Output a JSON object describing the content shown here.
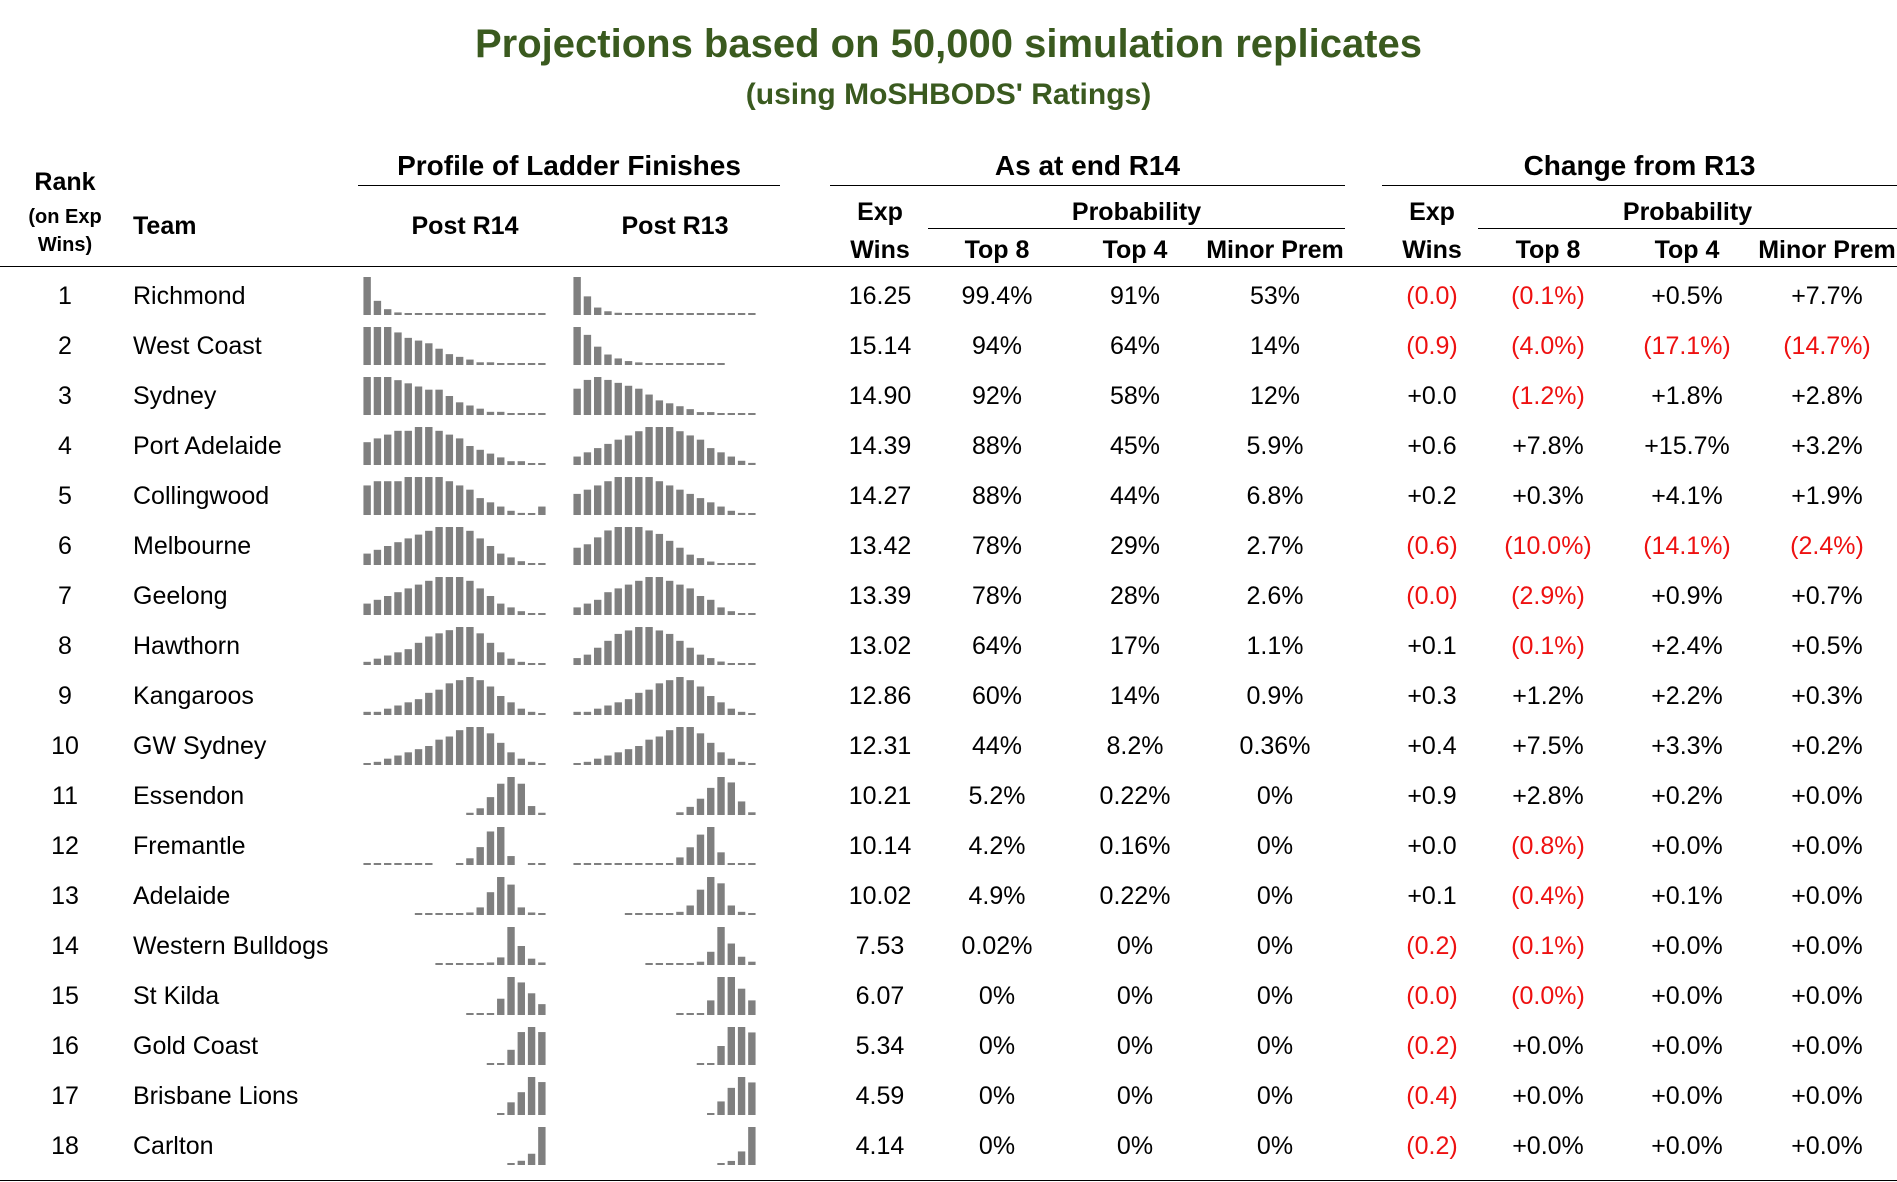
{
  "title": "Projections based on 50,000 simulation replicates",
  "subtitle": "(using MoSHBODS' Ratings)",
  "headers": {
    "rank": "Rank",
    "rank_sub1": "(on Exp",
    "rank_sub2": "Wins)",
    "team": "Team",
    "profile": "Profile of Ladder Finishes",
    "post_r14": "Post R14",
    "post_r13": "Post R13",
    "as_at": "As at end R14",
    "change": "Change from R13",
    "exp": "Exp",
    "wins": "Wins",
    "probability": "Probability",
    "top8": "Top 8",
    "top4": "Top 4",
    "minor_prem": "Minor Prem"
  },
  "colors": {
    "title": "#3a5a1f",
    "negative": "#ee1111",
    "bar": "#7f7f7f"
  },
  "rows": [
    {
      "rank": "1",
      "team": "Richmond",
      "exp_wins": "16.25",
      "top8": "99.4%",
      "top4": "91%",
      "minor": "53%",
      "ch_exp": "(0.0)",
      "ch_top8": "(0.1%)",
      "ch_top4": "+0.5%",
      "ch_minor": "+7.7%"
    },
    {
      "rank": "2",
      "team": "West Coast",
      "exp_wins": "15.14",
      "top8": "94%",
      "top4": "64%",
      "minor": "14%",
      "ch_exp": "(0.9)",
      "ch_top8": "(4.0%)",
      "ch_top4": "(17.1%)",
      "ch_minor": "(14.7%)"
    },
    {
      "rank": "3",
      "team": "Sydney",
      "exp_wins": "14.90",
      "top8": "92%",
      "top4": "58%",
      "minor": "12%",
      "ch_exp": "+0.0",
      "ch_top8": "(1.2%)",
      "ch_top4": "+1.8%",
      "ch_minor": "+2.8%"
    },
    {
      "rank": "4",
      "team": "Port Adelaide",
      "exp_wins": "14.39",
      "top8": "88%",
      "top4": "45%",
      "minor": "5.9%",
      "ch_exp": "+0.6",
      "ch_top8": "+7.8%",
      "ch_top4": "+15.7%",
      "ch_minor": "+3.2%"
    },
    {
      "rank": "5",
      "team": "Collingwood",
      "exp_wins": "14.27",
      "top8": "88%",
      "top4": "44%",
      "minor": "6.8%",
      "ch_exp": "+0.2",
      "ch_top8": "+0.3%",
      "ch_top4": "+4.1%",
      "ch_minor": "+1.9%"
    },
    {
      "rank": "6",
      "team": "Melbourne",
      "exp_wins": "13.42",
      "top8": "78%",
      "top4": "29%",
      "minor": "2.7%",
      "ch_exp": "(0.6)",
      "ch_top8": "(10.0%)",
      "ch_top4": "(14.1%)",
      "ch_minor": "(2.4%)"
    },
    {
      "rank": "7",
      "team": "Geelong",
      "exp_wins": "13.39",
      "top8": "78%",
      "top4": "28%",
      "minor": "2.6%",
      "ch_exp": "(0.0)",
      "ch_top8": "(2.9%)",
      "ch_top4": "+0.9%",
      "ch_minor": "+0.7%"
    },
    {
      "rank": "8",
      "team": "Hawthorn",
      "exp_wins": "13.02",
      "top8": "64%",
      "top4": "17%",
      "minor": "1.1%",
      "ch_exp": "+0.1",
      "ch_top8": "(0.1%)",
      "ch_top4": "+2.4%",
      "ch_minor": "+0.5%"
    },
    {
      "rank": "9",
      "team": "Kangaroos",
      "exp_wins": "12.86",
      "top8": "60%",
      "top4": "14%",
      "minor": "0.9%",
      "ch_exp": "+0.3",
      "ch_top8": "+1.2%",
      "ch_top4": "+2.2%",
      "ch_minor": "+0.3%"
    },
    {
      "rank": "10",
      "team": "GW Sydney",
      "exp_wins": "12.31",
      "top8": "44%",
      "top4": "8.2%",
      "minor": "0.36%",
      "ch_exp": "+0.4",
      "ch_top8": "+7.5%",
      "ch_top4": "+3.3%",
      "ch_minor": "+0.2%"
    },
    {
      "rank": "11",
      "team": "Essendon",
      "exp_wins": "10.21",
      "top8": "5.2%",
      "top4": "0.22%",
      "minor": "0%",
      "ch_exp": "+0.9",
      "ch_top8": "+2.8%",
      "ch_top4": "+0.2%",
      "ch_minor": "+0.0%"
    },
    {
      "rank": "12",
      "team": "Fremantle",
      "exp_wins": "10.14",
      "top8": "4.2%",
      "top4": "0.16%",
      "minor": "0%",
      "ch_exp": "+0.0",
      "ch_top8": "(0.8%)",
      "ch_top4": "+0.0%",
      "ch_minor": "+0.0%"
    },
    {
      "rank": "13",
      "team": "Adelaide",
      "exp_wins": "10.02",
      "top8": "4.9%",
      "top4": "0.22%",
      "minor": "0%",
      "ch_exp": "+0.1",
      "ch_top8": "(0.4%)",
      "ch_top4": "+0.1%",
      "ch_minor": "+0.0%"
    },
    {
      "rank": "14",
      "team": "Western Bulldogs",
      "exp_wins": "7.53",
      "top8": "0.02%",
      "top4": "0%",
      "minor": "0%",
      "ch_exp": "(0.2)",
      "ch_top8": "(0.1%)",
      "ch_top4": "+0.0%",
      "ch_minor": "+0.0%"
    },
    {
      "rank": "15",
      "team": "St Kilda",
      "exp_wins": "6.07",
      "top8": "0%",
      "top4": "0%",
      "minor": "0%",
      "ch_exp": "(0.0)",
      "ch_top8": "(0.0%)",
      "ch_top4": "+0.0%",
      "ch_minor": "+0.0%"
    },
    {
      "rank": "16",
      "team": "Gold Coast",
      "exp_wins": "5.34",
      "top8": "0%",
      "top4": "0%",
      "minor": "0%",
      "ch_exp": "(0.2)",
      "ch_top8": "+0.0%",
      "ch_top4": "+0.0%",
      "ch_minor": "+0.0%"
    },
    {
      "rank": "17",
      "team": "Brisbane Lions",
      "exp_wins": "4.59",
      "top8": "0%",
      "top4": "0%",
      "minor": "0%",
      "ch_exp": "(0.4)",
      "ch_top8": "+0.0%",
      "ch_top4": "+0.0%",
      "ch_minor": "+0.0%"
    },
    {
      "rank": "18",
      "team": "Carlton",
      "exp_wins": "4.14",
      "top8": "0%",
      "top4": "0%",
      "minor": "0%",
      "ch_exp": "(0.2)",
      "ch_top8": "+0.0%",
      "ch_top4": "+0.0%",
      "ch_minor": "+0.0%"
    }
  ],
  "profiles": {
    "post_r14": [
      [
        0.59,
        0.22,
        0.09,
        0.04,
        0.02,
        0.01,
        0.005,
        0.003,
        0.002,
        0.001,
        0.001,
        0.001,
        0.001,
        0.001,
        0.001,
        0.001,
        0.001,
        0.001
      ],
      [
        0.14,
        0.14,
        0.14,
        0.12,
        0.1,
        0.09,
        0.08,
        0.06,
        0.04,
        0.03,
        0.02,
        0.01,
        0.01,
        0.005,
        0.003,
        0.002,
        0.001,
        0.001
      ],
      [
        0.12,
        0.12,
        0.12,
        0.11,
        0.1,
        0.09,
        0.08,
        0.08,
        0.06,
        0.04,
        0.03,
        0.02,
        0.01,
        0.01,
        0.005,
        0.003,
        0.002,
        0.001
      ],
      [
        0.06,
        0.07,
        0.08,
        0.09,
        0.09,
        0.1,
        0.1,
        0.09,
        0.08,
        0.07,
        0.05,
        0.04,
        0.03,
        0.02,
        0.01,
        0.01,
        0.005,
        0.002
      ],
      [
        0.07,
        0.08,
        0.08,
        0.08,
        0.09,
        0.09,
        0.09,
        0.09,
        0.08,
        0.07,
        0.06,
        0.04,
        0.03,
        0.02,
        0.01,
        0.005,
        0.003,
        0.02
      ],
      [
        0.03,
        0.04,
        0.05,
        0.06,
        0.07,
        0.08,
        0.09,
        0.1,
        0.1,
        0.1,
        0.09,
        0.07,
        0.05,
        0.03,
        0.02,
        0.01,
        0.005,
        0.003
      ],
      [
        0.03,
        0.04,
        0.05,
        0.06,
        0.07,
        0.08,
        0.09,
        0.1,
        0.1,
        0.1,
        0.09,
        0.07,
        0.05,
        0.03,
        0.02,
        0.01,
        0.005,
        0.003
      ],
      [
        0.01,
        0.02,
        0.03,
        0.04,
        0.05,
        0.07,
        0.09,
        0.1,
        0.11,
        0.12,
        0.12,
        0.1,
        0.07,
        0.04,
        0.02,
        0.01,
        0.005,
        0.003
      ],
      [
        0.01,
        0.01,
        0.02,
        0.03,
        0.04,
        0.05,
        0.07,
        0.08,
        0.1,
        0.11,
        0.12,
        0.11,
        0.09,
        0.06,
        0.04,
        0.02,
        0.01,
        0.005
      ],
      [
        0.005,
        0.01,
        0.02,
        0.03,
        0.04,
        0.05,
        0.06,
        0.08,
        0.09,
        0.11,
        0.12,
        0.12,
        0.1,
        0.07,
        0.04,
        0.02,
        0.01,
        0.005
      ],
      [
        0,
        0,
        0,
        0,
        0,
        0,
        0,
        0,
        0,
        0,
        0.01,
        0.03,
        0.08,
        0.14,
        0.17,
        0.14,
        0.04,
        0.01
      ],
      [
        0.001,
        0.001,
        0.001,
        0.001,
        0.001,
        0.001,
        0.001,
        0,
        0,
        0.003,
        0.03,
        0.08,
        0.15,
        0.17,
        0.04,
        0,
        0.001,
        0.001
      ],
      [
        0,
        0,
        0,
        0,
        0,
        0.001,
        0.001,
        0.002,
        0.003,
        0.005,
        0.01,
        0.03,
        0.09,
        0.15,
        0.12,
        0.03,
        0.01,
        0.003
      ],
      [
        0,
        0,
        0,
        0,
        0,
        0,
        0,
        0.001,
        0.001,
        0.002,
        0.003,
        0.005,
        0.02,
        0.06,
        0.3,
        0.15,
        0.05,
        0.02
      ],
      [
        0,
        0,
        0,
        0,
        0,
        0,
        0,
        0,
        0,
        0,
        0.001,
        0.002,
        0.005,
        0.06,
        0.14,
        0.12,
        0.08,
        0.04
      ],
      [
        0,
        0,
        0,
        0,
        0,
        0,
        0,
        0,
        0,
        0,
        0,
        0,
        0.001,
        0.003,
        0.06,
        0.13,
        0.15,
        0.13
      ],
      [
        0,
        0,
        0,
        0,
        0,
        0,
        0,
        0,
        0,
        0,
        0,
        0,
        0,
        0.001,
        0.05,
        0.09,
        0.15,
        0.13
      ],
      [
        0,
        0,
        0,
        0,
        0,
        0,
        0,
        0,
        0,
        0,
        0,
        0,
        0,
        0,
        0.005,
        0.03,
        0.08,
        0.27
      ]
    ],
    "post_r13": [
      [
        0.51,
        0.25,
        0.1,
        0.05,
        0.03,
        0.02,
        0.01,
        0.005,
        0.003,
        0.002,
        0.001,
        0.001,
        0.001,
        0.001,
        0.001,
        0.001,
        0.001,
        0.001
      ],
      [
        0.29,
        0.23,
        0.14,
        0.08,
        0.05,
        0.03,
        0.02,
        0.01,
        0.005,
        0.003,
        0.002,
        0.001,
        0.001,
        0.001,
        0.001,
        0,
        0,
        0
      ],
      [
        0.09,
        0.12,
        0.13,
        0.12,
        0.11,
        0.1,
        0.09,
        0.07,
        0.05,
        0.04,
        0.03,
        0.02,
        0.01,
        0.01,
        0.005,
        0.003,
        0.002,
        0.001
      ],
      [
        0.02,
        0.03,
        0.04,
        0.05,
        0.06,
        0.07,
        0.08,
        0.09,
        0.09,
        0.09,
        0.08,
        0.07,
        0.06,
        0.04,
        0.03,
        0.02,
        0.01,
        0.005
      ],
      [
        0.05,
        0.06,
        0.07,
        0.08,
        0.09,
        0.09,
        0.09,
        0.09,
        0.08,
        0.07,
        0.06,
        0.05,
        0.04,
        0.03,
        0.02,
        0.01,
        0.005,
        0.003
      ],
      [
        0.05,
        0.06,
        0.08,
        0.1,
        0.11,
        0.11,
        0.11,
        0.1,
        0.09,
        0.07,
        0.05,
        0.03,
        0.02,
        0.01,
        0.005,
        0.003,
        0.002,
        0.001
      ],
      [
        0.02,
        0.03,
        0.04,
        0.06,
        0.07,
        0.08,
        0.09,
        0.1,
        0.1,
        0.09,
        0.08,
        0.07,
        0.05,
        0.04,
        0.02,
        0.01,
        0.005,
        0.003
      ],
      [
        0.02,
        0.03,
        0.05,
        0.07,
        0.09,
        0.1,
        0.11,
        0.11,
        0.1,
        0.09,
        0.07,
        0.05,
        0.03,
        0.02,
        0.01,
        0.005,
        0.003,
        0.001
      ],
      [
        0.01,
        0.01,
        0.02,
        0.03,
        0.04,
        0.05,
        0.07,
        0.08,
        0.1,
        0.11,
        0.12,
        0.11,
        0.09,
        0.06,
        0.04,
        0.02,
        0.01,
        0.005
      ],
      [
        0.005,
        0.01,
        0.02,
        0.03,
        0.04,
        0.05,
        0.06,
        0.08,
        0.09,
        0.11,
        0.12,
        0.12,
        0.1,
        0.07,
        0.04,
        0.02,
        0.01,
        0.005
      ],
      [
        0,
        0,
        0,
        0,
        0,
        0,
        0,
        0,
        0,
        0,
        0.01,
        0.03,
        0.06,
        0.1,
        0.14,
        0.12,
        0.05,
        0.01
      ],
      [
        0.001,
        0.001,
        0.001,
        0.001,
        0.001,
        0.001,
        0.001,
        0.001,
        0.001,
        0.003,
        0.03,
        0.07,
        0.12,
        0.15,
        0.05,
        0.001,
        0.001,
        0.001
      ],
      [
        0,
        0,
        0,
        0,
        0,
        0.001,
        0.001,
        0.002,
        0.003,
        0.005,
        0.01,
        0.03,
        0.08,
        0.12,
        0.1,
        0.03,
        0.01,
        0.003
      ],
      [
        0,
        0,
        0,
        0,
        0,
        0,
        0,
        0.001,
        0.001,
        0.002,
        0.003,
        0.005,
        0.02,
        0.08,
        0.23,
        0.13,
        0.05,
        0.02
      ],
      [
        0,
        0,
        0,
        0,
        0,
        0,
        0,
        0,
        0,
        0,
        0.001,
        0.002,
        0.005,
        0.05,
        0.13,
        0.13,
        0.09,
        0.05
      ],
      [
        0,
        0,
        0,
        0,
        0,
        0,
        0,
        0,
        0,
        0,
        0,
        0,
        0.001,
        0.003,
        0.07,
        0.14,
        0.14,
        0.12
      ],
      [
        0,
        0,
        0,
        0,
        0,
        0,
        0,
        0,
        0,
        0,
        0,
        0,
        0,
        0.001,
        0.05,
        0.1,
        0.14,
        0.12
      ],
      [
        0,
        0,
        0,
        0,
        0,
        0,
        0,
        0,
        0,
        0,
        0,
        0,
        0,
        0,
        0.005,
        0.03,
        0.1,
        0.28
      ]
    ]
  }
}
